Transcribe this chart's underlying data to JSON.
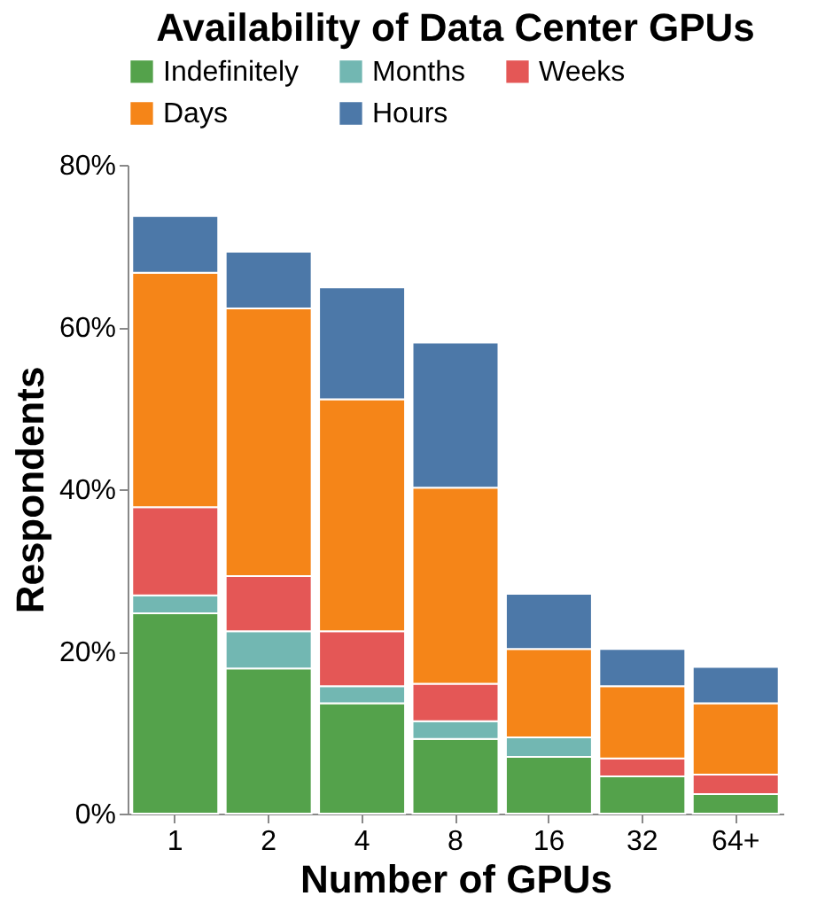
{
  "chart_data": {
    "type": "bar",
    "stacked": true,
    "title": "Availability of Data Center GPUs",
    "xlabel": "Number of GPUs",
    "ylabel": "Respondents",
    "categories": [
      "1",
      "2",
      "4",
      "8",
      "16",
      "32",
      "64+"
    ],
    "series": [
      {
        "name": "Indefinitely",
        "color": "#54a24b",
        "values": [
          24.7,
          17.9,
          13.6,
          9.2,
          7.0,
          4.6,
          2.4
        ]
      },
      {
        "name": "Months",
        "color": "#72b7b2",
        "values": [
          2.2,
          4.6,
          2.1,
          2.2,
          2.4,
          0,
          0
        ]
      },
      {
        "name": "Weeks",
        "color": "#e45756",
        "values": [
          10.9,
          6.8,
          6.8,
          4.6,
          0,
          2.2,
          2.4
        ]
      },
      {
        "name": "Days",
        "color": "#f58518",
        "values": [
          28.9,
          33.0,
          28.6,
          24.2,
          10.9,
          8.9,
          8.8
        ]
      },
      {
        "name": "Hours",
        "color": "#4c78a8",
        "values": [
          7.0,
          7.0,
          13.8,
          17.9,
          6.8,
          4.6,
          4.5
        ]
      }
    ],
    "ylim": [
      0,
      80
    ],
    "yticks": [
      {
        "value": 0,
        "label": "0%"
      },
      {
        "value": 20,
        "label": "20%"
      },
      {
        "value": 40,
        "label": "40%"
      },
      {
        "value": 60,
        "label": "60%"
      },
      {
        "value": 80,
        "label": "80%"
      }
    ],
    "legend": "top",
    "grid": false
  }
}
